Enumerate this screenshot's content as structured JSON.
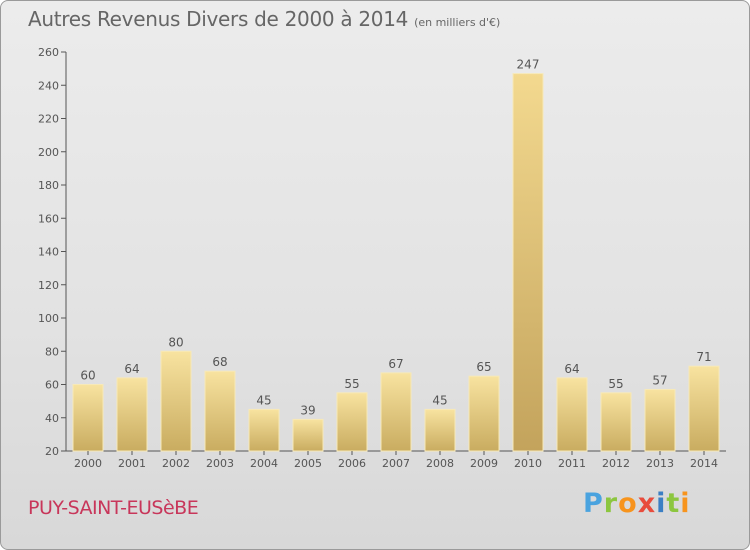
{
  "header": {
    "title": "Autres Revenus Divers de 2000 à 2014",
    "subtitle": "(en milliers d'€)"
  },
  "footer": {
    "commune": "PUY-SAINT-EUSèBE",
    "logo_text": "Proxiti"
  },
  "colors": {
    "bar_light": "#f8e3a0",
    "bar_dark": "#c9ac60",
    "bar_highlight_light": "#f3d98f",
    "bar_highlight_dark": "#c3a35c",
    "label": "#555555"
  },
  "chart_data": {
    "type": "bar",
    "categories": [
      "2000",
      "2001",
      "2002",
      "2003",
      "2004",
      "2005",
      "2006",
      "2007",
      "2008",
      "2009",
      "2010",
      "2011",
      "2012",
      "2013",
      "2014"
    ],
    "values": [
      60,
      64,
      80,
      68,
      45,
      39,
      55,
      67,
      45,
      65,
      247,
      64,
      55,
      57,
      71
    ],
    "title": "Autres Revenus Divers de 2000 à 2014",
    "subtitle": "(en milliers d'€)",
    "xlabel": "",
    "ylabel": "",
    "ylim": [
      20,
      260
    ],
    "yticks": [
      20,
      40,
      60,
      80,
      100,
      120,
      140,
      160,
      180,
      200,
      220,
      240,
      260
    ],
    "grid": false,
    "data_labels": true,
    "legend": "none"
  }
}
